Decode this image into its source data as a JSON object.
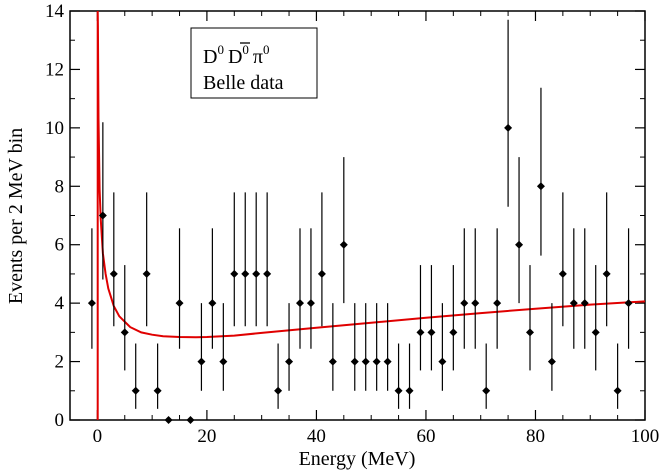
{
  "chart_data": {
    "type": "scatter",
    "title": "",
    "xlabel": "Energy (MeV)",
    "ylabel": "Events per 2 MeV bin",
    "xlim": [
      -5,
      100
    ],
    "ylim": [
      0,
      14
    ],
    "xticks": [
      0,
      20,
      40,
      60,
      80,
      100
    ],
    "yticks": [
      0,
      2,
      4,
      6,
      8,
      10,
      12,
      14
    ],
    "xtick_labels": [
      "0",
      "20",
      "40",
      "60",
      "80",
      "100"
    ],
    "ytick_labels": [
      "0",
      "2",
      "4",
      "6",
      "8",
      "10",
      "12",
      "14"
    ],
    "legend": {
      "position": "top-center",
      "parts": [
        "D",
        "0",
        "D",
        "0",
        "π",
        "0"
      ],
      "line2": "Belle data"
    },
    "series": [
      {
        "name": "Belle data",
        "kind": "points-with-error-bars",
        "color": "#000000",
        "x": [
          -1,
          1,
          3,
          5,
          7,
          9,
          11,
          13,
          15,
          17,
          19,
          21,
          23,
          25,
          27,
          29,
          31,
          33,
          35,
          37,
          39,
          41,
          43,
          45,
          47,
          49,
          51,
          53,
          55,
          57,
          59,
          61,
          63,
          65,
          67,
          69,
          71,
          73,
          75,
          77,
          79,
          81,
          83,
          85,
          87,
          89,
          91,
          93,
          95,
          97
        ],
        "y": [
          4,
          7,
          5,
          3,
          1,
          5,
          1,
          0,
          4,
          0,
          2,
          4,
          2,
          5,
          5,
          5,
          5,
          1,
          2,
          4,
          4,
          5,
          2,
          6,
          2,
          2,
          2,
          2,
          1,
          1,
          3,
          3,
          2,
          3,
          4,
          4,
          1,
          4,
          10,
          6,
          3,
          8,
          2,
          5,
          4,
          4,
          3,
          5,
          1,
          4
        ]
      },
      {
        "name": "Fit curve",
        "kind": "line",
        "color": "#e00000",
        "x": [
          0.05,
          0.1,
          0.2,
          0.4,
          0.6,
          1,
          1.5,
          2,
          3,
          4,
          6,
          8,
          10,
          12,
          15,
          18,
          20,
          25,
          30,
          40,
          50,
          60,
          70,
          80,
          90,
          100
        ],
        "y": [
          14,
          13.5,
          10.3,
          7.9,
          6.9,
          5.7,
          5.0,
          4.5,
          3.9,
          3.55,
          3.18,
          3.0,
          2.92,
          2.87,
          2.84,
          2.83,
          2.84,
          2.89,
          2.98,
          3.16,
          3.33,
          3.5,
          3.66,
          3.81,
          3.95,
          4.06
        ]
      }
    ]
  }
}
